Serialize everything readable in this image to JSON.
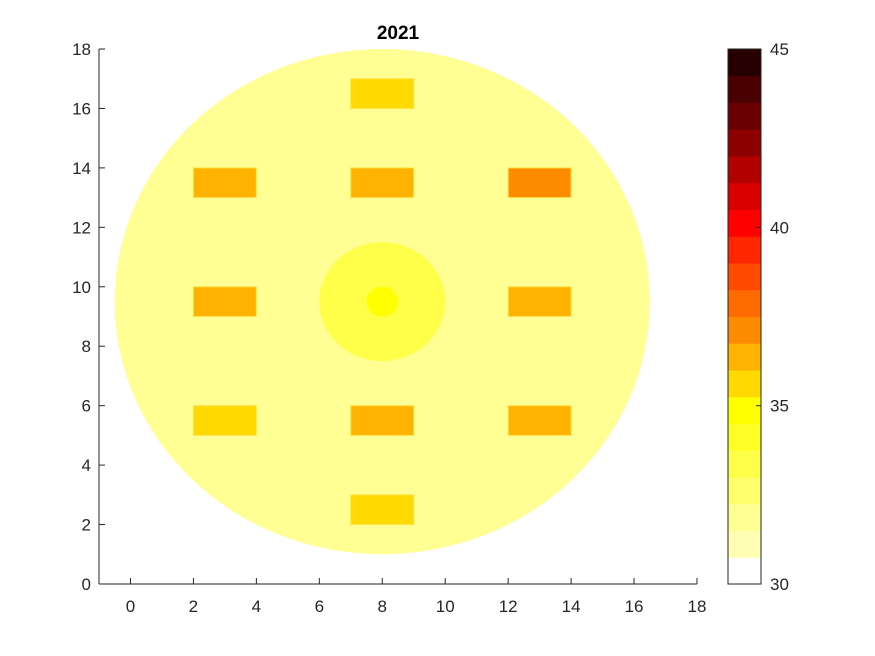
{
  "chart_data": {
    "type": "heatmap",
    "title": "2021",
    "xlabel": "",
    "ylabel": "",
    "xlim": [
      -1,
      18
    ],
    "ylim": [
      0,
      18
    ],
    "xticks": [
      0,
      2,
      4,
      6,
      8,
      10,
      12,
      14,
      16,
      18
    ],
    "yticks": [
      0,
      2,
      4,
      6,
      8,
      10,
      12,
      14,
      16,
      18
    ],
    "grid": false,
    "colorbar": {
      "limits": [
        30,
        45
      ],
      "ticks": [
        30,
        35,
        40,
        45
      ],
      "levels": 20,
      "colormap": [
        "#ffffff",
        "#ffffd9",
        "#ffffb3",
        "#ffff94",
        "#ffff6b",
        "#ffff4a",
        "#ffff26",
        "#ffff00",
        "#ffd900",
        "#ffb300",
        "#ff8c00",
        "#ff6b00",
        "#ff4a00",
        "#ff2600",
        "#ff0000",
        "#d90000",
        "#b30000",
        "#8c0000",
        "#6b0000",
        "#4a0000",
        "#260000"
      ]
    },
    "regions": [
      {
        "shape": "circle",
        "center": [
          8,
          9.5
        ],
        "radius": 8.5,
        "value": 31.8
      },
      {
        "shape": "circle",
        "center": [
          8,
          9.5
        ],
        "radius": 2.0,
        "value": 33.1
      },
      {
        "shape": "circle",
        "center": [
          8,
          9.5
        ],
        "radius": 0.5,
        "value": 34.6
      },
      {
        "shape": "rect",
        "x": [
          7,
          9
        ],
        "y": [
          16,
          17
        ],
        "value": 35.7
      },
      {
        "shape": "rect",
        "x": [
          2,
          4
        ],
        "y": [
          13,
          14
        ],
        "value": 36.4
      },
      {
        "shape": "rect",
        "x": [
          7,
          9
        ],
        "y": [
          13,
          14
        ],
        "value": 36.4
      },
      {
        "shape": "rect",
        "x": [
          12,
          14
        ],
        "y": [
          13,
          14
        ],
        "value": 37.1
      },
      {
        "shape": "rect",
        "x": [
          2,
          4
        ],
        "y": [
          9,
          10
        ],
        "value": 36.4
      },
      {
        "shape": "rect",
        "x": [
          12,
          14
        ],
        "y": [
          9,
          10
        ],
        "value": 36.4
      },
      {
        "shape": "rect",
        "x": [
          2,
          4
        ],
        "y": [
          5,
          6
        ],
        "value": 35.7
      },
      {
        "shape": "rect",
        "x": [
          7,
          9
        ],
        "y": [
          5,
          6
        ],
        "value": 36.4
      },
      {
        "shape": "rect",
        "x": [
          12,
          14
        ],
        "y": [
          5,
          6
        ],
        "value": 36.4
      },
      {
        "shape": "rect",
        "x": [
          7,
          9
        ],
        "y": [
          2,
          3
        ],
        "value": 35.7
      }
    ]
  }
}
